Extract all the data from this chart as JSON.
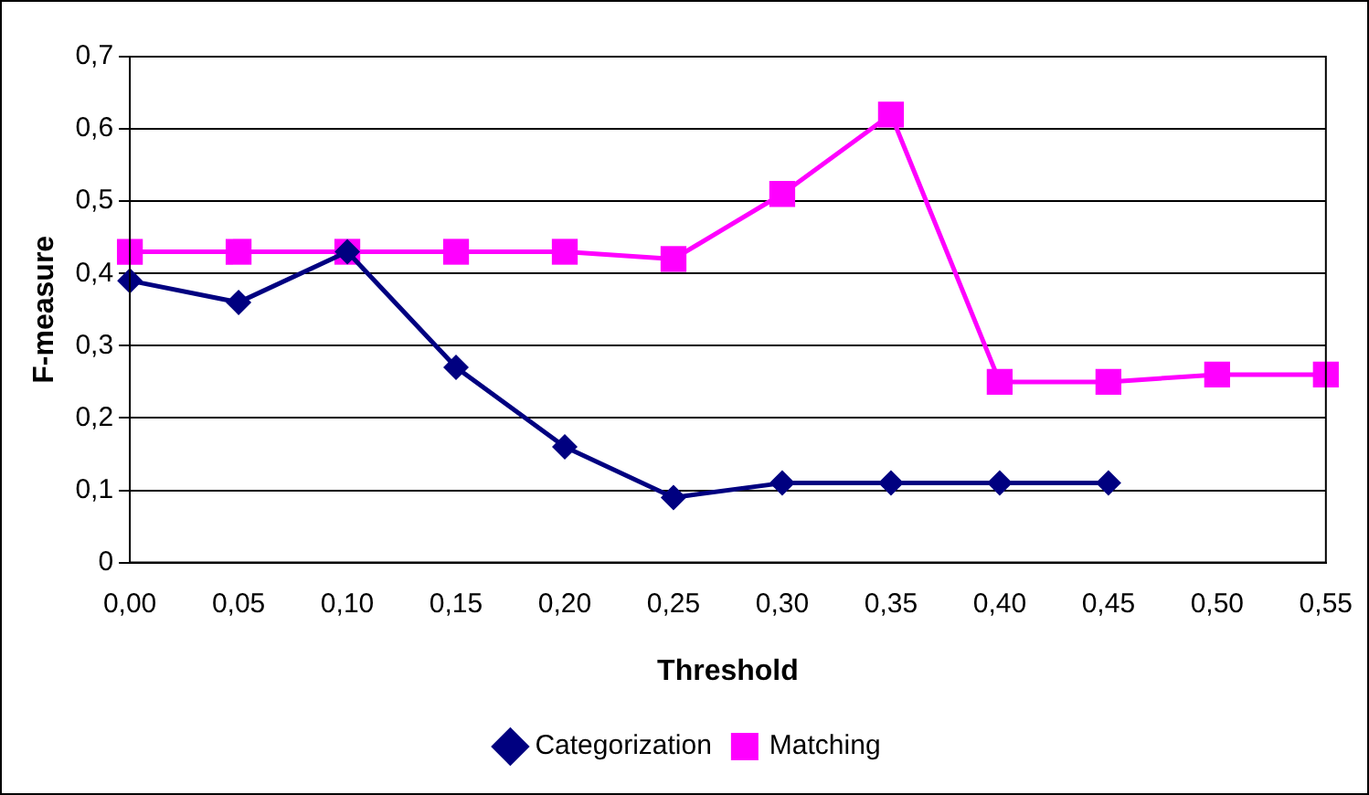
{
  "chart_data": {
    "type": "line",
    "xlabel": "Threshold",
    "ylabel": "F-measure",
    "categories": [
      "0,00",
      "0,05",
      "0,10",
      "0,15",
      "0,20",
      "0,25",
      "0,30",
      "0,35",
      "0,40",
      "0,45",
      "0,50",
      "0,55"
    ],
    "series": [
      {
        "name": "Categorization",
        "color": "#000080",
        "marker": "diamond",
        "values": [
          0.39,
          0.36,
          0.43,
          0.27,
          0.16,
          0.09,
          0.11,
          0.11,
          0.11,
          0.11,
          null,
          null
        ]
      },
      {
        "name": "Matching",
        "color": "#ff00ff",
        "marker": "square",
        "values": [
          0.43,
          0.43,
          0.43,
          0.43,
          0.43,
          0.42,
          0.51,
          0.62,
          0.25,
          0.25,
          0.26,
          0.26
        ]
      }
    ],
    "ylim": [
      0,
      0.7
    ],
    "yticks": [
      {
        "value": 0,
        "label": "0"
      },
      {
        "value": 0.1,
        "label": "0,1"
      },
      {
        "value": 0.2,
        "label": "0,2"
      },
      {
        "value": 0.3,
        "label": "0,3"
      },
      {
        "value": 0.4,
        "label": "0,4"
      },
      {
        "value": 0.5,
        "label": "0,5"
      },
      {
        "value": 0.6,
        "label": "0,6"
      },
      {
        "value": 0.7,
        "label": "0,7"
      }
    ],
    "grid": "y",
    "legend": "bottom",
    "line_style": "solid"
  }
}
